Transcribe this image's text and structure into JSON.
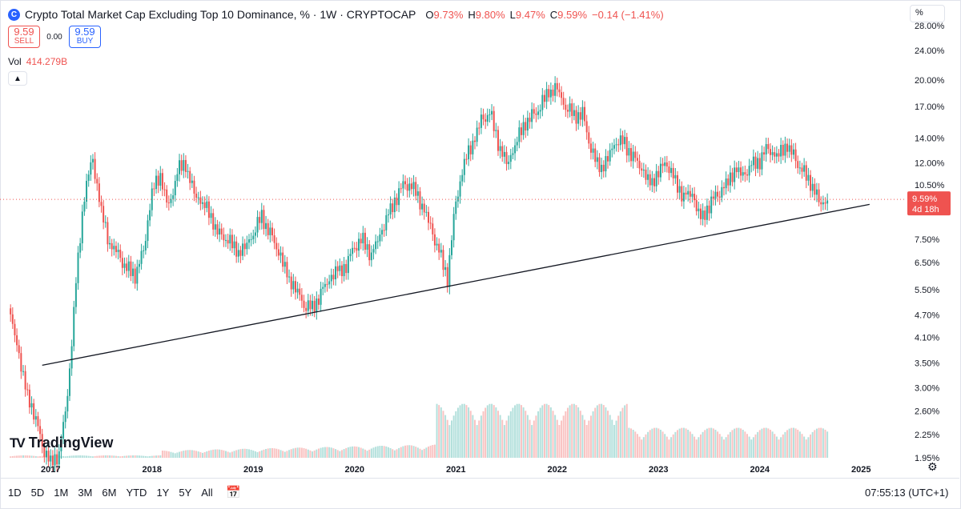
{
  "header": {
    "logo_icon": "cryptocap-c-icon",
    "title": "Crypto Total Market Cap Excluding Top 10 Dominance, % · 1W · CRYPTOCAP",
    "ohlc": [
      {
        "key": "O",
        "value": "9.73%"
      },
      {
        "key": "H",
        "value": "9.80%"
      },
      {
        "key": "L",
        "value": "9.47%"
      },
      {
        "key": "C",
        "value": "9.59%"
      }
    ],
    "change": "−0.14 (−1.41%)"
  },
  "trade": {
    "sell_price": "9.59",
    "sell_label": "SELL",
    "spread": "0.00",
    "buy_price": "9.59",
    "buy_label": "BUY"
  },
  "volume": {
    "label": "Vol",
    "value": "414.279B"
  },
  "scale_button": "%",
  "price_badge": {
    "value": "9.59%",
    "countdown": "4d 18h"
  },
  "watermark": "TradingView",
  "range_buttons": [
    "1D",
    "5D",
    "1M",
    "3M",
    "6M",
    "YTD",
    "1Y",
    "5Y",
    "All"
  ],
  "clock": "07:55:13 (UTC+1)",
  "colors": {
    "up": "#26a69a",
    "down": "#ef5350",
    "trendline": "#131722",
    "badge": "#ef5350"
  },
  "chart_data": {
    "type": "candlestick",
    "title": "Crypto Total Market Cap Excluding Top 10 Dominance, % · 1W · CRYPTOCAP",
    "scale": "log",
    "grid": false,
    "y_ticks": [
      "28.00%",
      "24.00%",
      "20.00%",
      "17.00%",
      "14.00%",
      "12.00%",
      "10.50%",
      "7.50%",
      "6.50%",
      "5.50%",
      "4.70%",
      "4.10%",
      "3.50%",
      "3.00%",
      "2.60%",
      "2.25%",
      "1.95%"
    ],
    "x_ticks": [
      "2017",
      "2018",
      "2019",
      "2020",
      "2021",
      "2022",
      "2023",
      "2024",
      "2025"
    ],
    "ylim": [
      1.95,
      28.0
    ],
    "xlim": [
      "2016-07",
      "2025-06"
    ],
    "series": [
      {
        "values": [
          [
            "2016-08",
            4.9
          ],
          [
            "2016-09",
            3.9
          ],
          [
            "2016-10",
            3.0
          ],
          [
            "2016-11",
            2.6
          ],
          [
            "2016-12",
            2.1
          ],
          [
            "2017-01",
            1.9
          ],
          [
            "2017-02",
            2.0
          ],
          [
            "2017-03",
            2.8
          ],
          [
            "2017-04",
            5.8
          ],
          [
            "2017-05",
            10.0
          ],
          [
            "2017-06",
            12.3
          ],
          [
            "2017-07",
            9.0
          ],
          [
            "2017-08",
            7.2
          ],
          [
            "2017-09",
            6.8
          ],
          [
            "2017-10",
            6.3
          ],
          [
            "2017-11",
            6.0
          ],
          [
            "2017-12",
            7.0
          ],
          [
            "2018-01",
            10.2
          ],
          [
            "2018-02",
            11.0
          ],
          [
            "2018-03",
            9.0
          ],
          [
            "2018-04",
            11.5
          ],
          [
            "2018-05",
            11.8
          ],
          [
            "2018-06",
            10.0
          ],
          [
            "2018-07",
            9.5
          ],
          [
            "2018-08",
            8.5
          ],
          [
            "2018-09",
            7.7
          ],
          [
            "2018-10",
            7.5
          ],
          [
            "2018-11",
            6.9
          ],
          [
            "2018-12",
            7.2
          ],
          [
            "2019-01",
            7.8
          ],
          [
            "2019-02",
            8.6
          ],
          [
            "2019-03",
            7.8
          ],
          [
            "2019-04",
            6.9
          ],
          [
            "2019-05",
            6.0
          ],
          [
            "2019-06",
            5.6
          ],
          [
            "2019-07",
            5.0
          ],
          [
            "2019-08",
            4.9
          ],
          [
            "2019-09",
            5.4
          ],
          [
            "2019-10",
            5.8
          ],
          [
            "2019-11",
            6.2
          ],
          [
            "2019-12",
            6.4
          ],
          [
            "2020-01",
            7.2
          ],
          [
            "2020-02",
            7.5
          ],
          [
            "2020-03",
            6.8
          ],
          [
            "2020-04",
            7.6
          ],
          [
            "2020-05",
            8.8
          ],
          [
            "2020-06",
            9.8
          ],
          [
            "2020-07",
            10.6
          ],
          [
            "2020-08",
            10.4
          ],
          [
            "2020-09",
            9.2
          ],
          [
            "2020-10",
            8.0
          ],
          [
            "2020-11",
            7.0
          ],
          [
            "2020-12",
            5.9
          ],
          [
            "2021-01",
            9.5
          ],
          [
            "2021-02",
            12.2
          ],
          [
            "2021-03",
            13.5
          ],
          [
            "2021-04",
            15.5
          ],
          [
            "2021-05",
            16.5
          ],
          [
            "2021-06",
            13.5
          ],
          [
            "2021-07",
            12.0
          ],
          [
            "2021-08",
            13.5
          ],
          [
            "2021-09",
            15.0
          ],
          [
            "2021-10",
            16.0
          ],
          [
            "2021-11",
            17.0
          ],
          [
            "2021-12",
            18.5
          ],
          [
            "2022-01",
            19.2
          ],
          [
            "2022-02",
            17.0
          ],
          [
            "2022-03",
            16.0
          ],
          [
            "2022-04",
            16.3
          ],
          [
            "2022-05",
            13.0
          ],
          [
            "2022-06",
            11.5
          ],
          [
            "2022-07",
            12.5
          ],
          [
            "2022-08",
            13.8
          ],
          [
            "2022-09",
            13.5
          ],
          [
            "2022-10",
            12.5
          ],
          [
            "2022-11",
            11.5
          ],
          [
            "2022-12",
            10.5
          ],
          [
            "2023-01",
            11.5
          ],
          [
            "2023-02",
            12.0
          ],
          [
            "2023-03",
            10.7
          ],
          [
            "2023-04",
            9.8
          ],
          [
            "2023-05",
            9.8
          ],
          [
            "2023-06",
            8.5
          ],
          [
            "2023-07",
            9.3
          ],
          [
            "2023-08",
            9.9
          ],
          [
            "2023-09",
            10.6
          ],
          [
            "2023-10",
            11.5
          ],
          [
            "2023-11",
            11.0
          ],
          [
            "2023-12",
            11.9
          ],
          [
            "2024-01",
            12.2
          ],
          [
            "2024-02",
            13.2
          ],
          [
            "2024-03",
            12.6
          ],
          [
            "2024-04",
            13.3
          ],
          [
            "2024-05",
            12.5
          ],
          [
            "2024-06",
            11.5
          ],
          [
            "2024-07",
            10.6
          ],
          [
            "2024-08",
            9.5
          ],
          [
            "2024-09",
            9.59
          ]
        ]
      }
    ],
    "trendline": {
      "from": [
        "2016-12",
        3.45
      ],
      "to": [
        "2025-02",
        9.3
      ]
    }
  }
}
